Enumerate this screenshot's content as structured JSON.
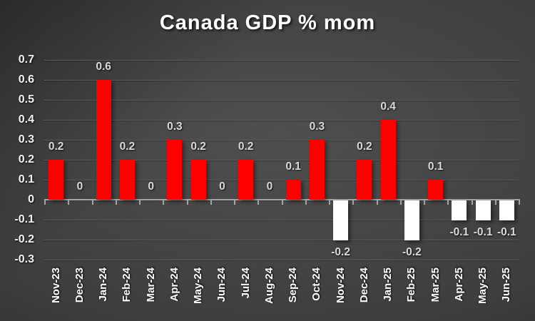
{
  "title": "Canada GDP % mom",
  "chart_data": {
    "type": "bar",
    "title": "Canada GDP % mom",
    "categories": [
      "Nov-23",
      "Dec-23",
      "Jan-24",
      "Feb-24",
      "Mar-24",
      "Apr-24",
      "May-24",
      "Jun-24",
      "Jul-24",
      "Aug-24",
      "Sep-24",
      "Oct-24",
      "Nov-24",
      "Dec-24",
      "Jan-25",
      "Feb-25",
      "Mar-25",
      "Apr-25",
      "May-25",
      "Jun-25"
    ],
    "values": [
      0.2,
      0,
      0.6,
      0.2,
      0,
      0.3,
      0.2,
      0,
      0.2,
      0,
      0.1,
      0.3,
      -0.2,
      0.2,
      0.4,
      -0.2,
      0.1,
      -0.1,
      -0.1,
      -0.1
    ],
    "data_labels": [
      "0.2",
      "0",
      "0.6",
      "0.2",
      "0",
      "0.3",
      "0.2",
      "0",
      "0.2",
      "0",
      "0.1",
      "0.3",
      "-0.2",
      "0.2",
      "0.4",
      "-0.2",
      "0.1",
      "-0.1",
      "-0.1",
      "-0.1"
    ],
    "xlabel": "",
    "ylabel": "",
    "ylim": [
      -0.3,
      0.7
    ],
    "ytick_interval": 0.1,
    "yticks": [
      "0.7",
      "0.6",
      "0.5",
      "0.4",
      "0.3",
      "0.2",
      "0.1",
      "0",
      "-0.1",
      "-0.2",
      "-0.3"
    ],
    "grid": true,
    "legend": "none",
    "colors": {
      "positive_bar": "#ff0000",
      "negative_bar": "#ffffff",
      "axis_line": "#a6a6a6",
      "gridline": "#5e5e5e",
      "title_text": "#ffffff",
      "axis_tick_label_text": "#f2f2f2",
      "data_label_text": "#d9d9d9",
      "background_center": "#4f4f4f",
      "background_mid": "#3d3d3d",
      "background_edge": "#1e1e1e"
    }
  }
}
